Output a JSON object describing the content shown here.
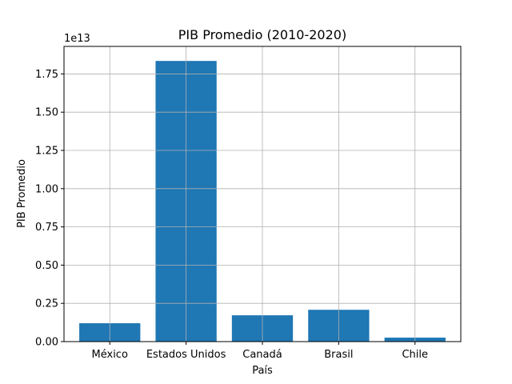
{
  "chart_data": {
    "type": "bar",
    "title": "PIB Promedio (2010-2020)",
    "xlabel": "País",
    "ylabel": "PIB Promedio",
    "offset_label": "1e13",
    "categories": [
      "México",
      "Estados Unidos",
      "Canadá",
      "Brasil",
      "Chile"
    ],
    "values": [
      1200000000000.0,
      18350000000000.0,
      1720000000000.0,
      2080000000000.0,
      260000000000.0
    ],
    "ylim": [
      0,
      19300000000000.0
    ],
    "yticks": [
      0,
      2500000000000.0,
      5000000000000.0,
      7500000000000.0,
      10000000000000.0,
      12500000000000.0,
      15000000000000.0,
      17500000000000.0
    ],
    "ytick_labels": [
      "0.00",
      "0.25",
      "0.50",
      "0.75",
      "1.00",
      "1.25",
      "1.50",
      "1.75"
    ],
    "grid": true,
    "bar_color": "#1f77b4",
    "grid_color": "#b0b0b0"
  }
}
